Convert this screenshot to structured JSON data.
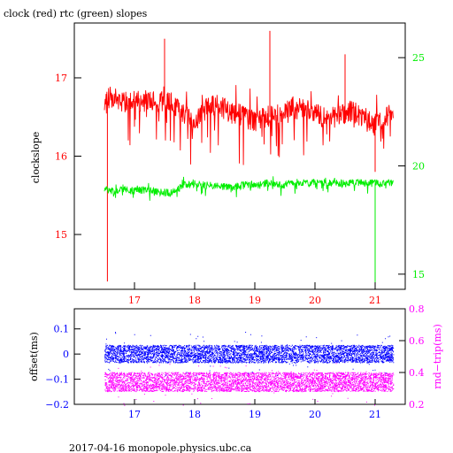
{
  "title": "clock (red) rtc (green) slopes",
  "footer": "2017-04-16  monopole.physics.ubc.ca",
  "colors": {
    "clock": "#ff0000",
    "rtc": "#00ee00",
    "offset": "#0000ff",
    "rndtrip": "#ff00ff",
    "axis": "#000000"
  },
  "chart_data": [
    {
      "type": "line",
      "title": "clock (red) rtc (green) slopes",
      "xlabel": "",
      "ylabel": "clockslope",
      "y2label": "",
      "xlim": [
        16.0,
        21.5
      ],
      "ylim": [
        14.3,
        17.7
      ],
      "y2lim": [
        14.3,
        26.6
      ],
      "xticks": [
        "17",
        "18",
        "19",
        "20",
        "21"
      ],
      "yticks": [
        "15",
        "16",
        "17"
      ],
      "y2ticks": [
        "15",
        "20",
        "25"
      ],
      "series": [
        {
          "name": "clock",
          "axis": "left",
          "color": "#ff0000",
          "x": [
            16.5,
            16.6,
            16.8,
            17.0,
            17.2,
            17.4,
            17.6,
            17.8,
            18.0,
            18.2,
            18.4,
            18.6,
            18.8,
            19.0,
            19.2,
            19.4,
            19.6,
            19.8,
            20.0,
            20.2,
            20.4,
            20.6,
            20.8,
            21.0,
            21.2,
            21.3
          ],
          "values": [
            16.7,
            16.75,
            16.7,
            16.7,
            16.72,
            16.7,
            16.68,
            16.55,
            16.45,
            16.62,
            16.65,
            16.55,
            16.52,
            16.45,
            16.5,
            16.55,
            16.62,
            16.6,
            16.55,
            16.48,
            16.5,
            16.58,
            16.5,
            16.4,
            16.5,
            16.55
          ],
          "spikes_x": [
            16.55,
            17.5,
            19.25,
            21.0,
            20.5
          ],
          "spikes_y": [
            14.4,
            17.5,
            17.6,
            15.8,
            17.3
          ]
        },
        {
          "name": "rtc",
          "axis": "right",
          "color": "#00ee00",
          "x": [
            16.5,
            16.6,
            16.8,
            17.0,
            17.2,
            17.4,
            17.6,
            17.8,
            18.0,
            18.2,
            18.4,
            18.6,
            18.8,
            19.0,
            19.2,
            19.4,
            19.6,
            19.8,
            20.0,
            20.2,
            20.4,
            20.6,
            20.8,
            21.0,
            21.2,
            21.3
          ],
          "values": [
            19.0,
            18.8,
            18.9,
            18.85,
            18.9,
            18.8,
            18.75,
            19.1,
            19.2,
            19.1,
            19.05,
            19.0,
            19.1,
            19.15,
            19.2,
            19.1,
            19.15,
            19.2,
            19.25,
            19.2,
            19.2,
            19.25,
            19.2,
            19.2,
            19.25,
            19.2
          ],
          "spikes_x": [
            21.0
          ],
          "spikes_y": [
            14.3
          ]
        }
      ]
    },
    {
      "type": "scatter",
      "xlabel": "",
      "ylabel": "offset(ms)",
      "y2label": "rnd−trip(ms)",
      "xlim": [
        16.0,
        21.5
      ],
      "ylim": [
        -0.2,
        0.18
      ],
      "y2lim": [
        0.2,
        0.8
      ],
      "xticks": [
        "17",
        "18",
        "19",
        "20",
        "21"
      ],
      "yticks": [
        "−0.2",
        "−0.1",
        "0",
        "0.1"
      ],
      "y2ticks": [
        "0.2",
        "0.4",
        "0.6",
        "0.8"
      ],
      "series": [
        {
          "name": "offset",
          "axis": "left",
          "color": "#0000ff",
          "x_range": [
            16.5,
            21.3
          ],
          "center": 0.0,
          "spread": 0.035
        },
        {
          "name": "rnd-trip",
          "axis": "right",
          "color": "#ff00ff",
          "x_range": [
            16.5,
            21.3
          ],
          "center": 0.34,
          "spread": 0.06
        }
      ]
    }
  ]
}
